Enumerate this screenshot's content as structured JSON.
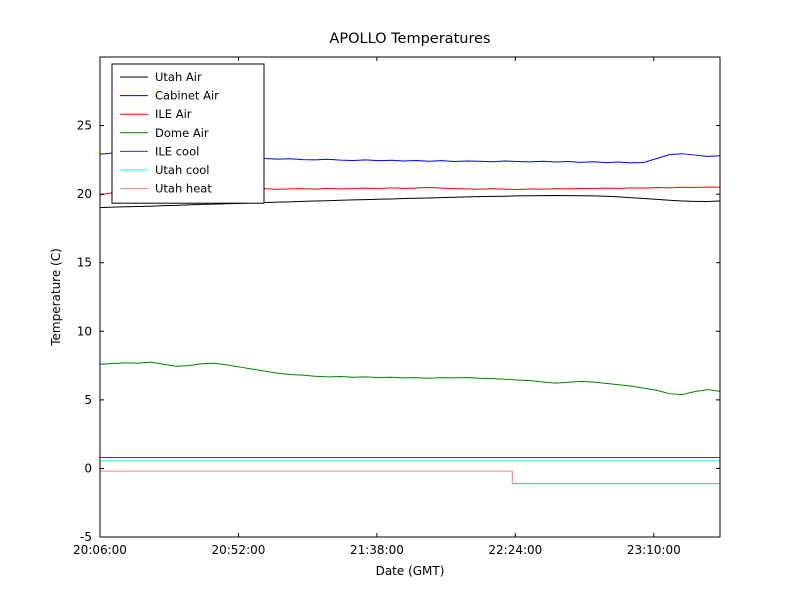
{
  "chart_data": {
    "type": "line",
    "title": "APOLLO Temperatures",
    "xlabel": "Date (GMT)",
    "ylabel": "Temperature (C)",
    "grid": false,
    "legend_position": "upper left",
    "xlim": [
      1206,
      1412
    ],
    "ylim": [
      -5,
      30
    ],
    "x_ticks": [
      1206,
      1252,
      1298,
      1344,
      1390
    ],
    "x_tick_labels": [
      "20:06:00",
      "20:52:00",
      "21:38:00",
      "22:24:00",
      "23:10:00"
    ],
    "y_ticks": [
      -5,
      0,
      5,
      10,
      15,
      20,
      25
    ],
    "y_tick_labels": [
      "-5",
      "0",
      "5",
      "10",
      "15",
      "20",
      "25"
    ],
    "series": [
      {
        "name": "Utah Air",
        "color": "#000000",
        "y": [
          19.02,
          19.05,
          19.08,
          19.1,
          19.12,
          19.16,
          19.18,
          19.22,
          19.25,
          19.27,
          19.3,
          19.33,
          19.35,
          19.39,
          19.42,
          19.44,
          19.47,
          19.5,
          19.52,
          19.55,
          19.58,
          19.6,
          19.63,
          19.65,
          19.68,
          19.7,
          19.72,
          19.75,
          19.77,
          19.8,
          19.82,
          19.84,
          19.85,
          19.87,
          19.88,
          19.89,
          19.9,
          19.89,
          19.88,
          19.87,
          19.85,
          19.8,
          19.74,
          19.68,
          19.62,
          19.55,
          19.5,
          19.47,
          19.46,
          19.5
        ]
      },
      {
        "name": "Cabinet Air",
        "color": "#0000ff",
        "y": [
          22.92,
          23.0,
          22.95,
          22.88,
          22.9,
          22.85,
          22.8,
          22.82,
          22.75,
          22.72,
          22.7,
          22.65,
          22.68,
          22.6,
          22.55,
          22.58,
          22.52,
          22.5,
          22.54,
          22.48,
          22.45,
          22.5,
          22.44,
          22.47,
          22.42,
          22.45,
          22.4,
          22.44,
          22.38,
          22.42,
          22.4,
          22.36,
          22.42,
          22.38,
          22.35,
          22.4,
          22.34,
          22.38,
          22.32,
          22.36,
          22.3,
          22.34,
          22.28,
          22.32,
          22.6,
          22.88,
          22.95,
          22.85,
          22.75,
          22.8
        ]
      },
      {
        "name": "ILE Air",
        "color": "#ff0000",
        "y": [
          19.95,
          20.1,
          20.2,
          20.28,
          20.33,
          20.38,
          20.42,
          20.45,
          20.4,
          20.43,
          20.38,
          20.42,
          20.36,
          20.4,
          20.35,
          20.38,
          20.4,
          20.36,
          20.42,
          20.38,
          20.4,
          20.44,
          20.4,
          20.46,
          20.42,
          20.45,
          20.48,
          20.44,
          20.4,
          20.38,
          20.36,
          20.4,
          20.36,
          20.34,
          20.38,
          20.36,
          20.4,
          20.38,
          20.42,
          20.4,
          20.44,
          20.42,
          20.46,
          20.44,
          20.48,
          20.46,
          20.5,
          20.48,
          20.52,
          20.5
        ]
      },
      {
        "name": "Dome Air",
        "color": "#007f00",
        "y": [
          7.6,
          7.65,
          7.7,
          7.68,
          7.75,
          7.6,
          7.45,
          7.5,
          7.62,
          7.68,
          7.55,
          7.4,
          7.25,
          7.1,
          6.95,
          6.85,
          6.8,
          6.72,
          6.68,
          6.7,
          6.65,
          6.68,
          6.62,
          6.65,
          6.6,
          6.62,
          6.58,
          6.62,
          6.6,
          6.63,
          6.58,
          6.55,
          6.5,
          6.45,
          6.4,
          6.3,
          6.22,
          6.28,
          6.35,
          6.3,
          6.2,
          6.1,
          6.0,
          5.85,
          5.7,
          5.45,
          5.38,
          5.6,
          5.75,
          5.62
        ]
      },
      {
        "name": "ILE cool",
        "color": "#3a3a9f",
        "x": [
          1206,
          1412
        ],
        "y": [
          0.8,
          0.8
        ]
      },
      {
        "name": "Utah cool",
        "color": "#00ffff",
        "x": [
          1206,
          1412
        ],
        "y": [
          0.55,
          0.55
        ]
      },
      {
        "name": "Utah heat",
        "color": "#f08080",
        "x": [
          1206,
          1343,
          1343,
          1412
        ],
        "y": [
          -0.2,
          -0.2,
          -1.1,
          -1.1
        ]
      }
    ]
  }
}
